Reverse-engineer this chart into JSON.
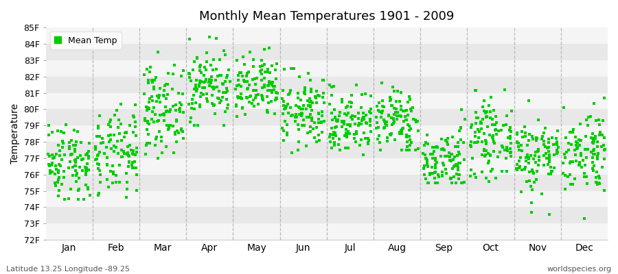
{
  "title": "Monthly Mean Temperatures 1901 - 2009",
  "ylabel": "Temperature",
  "footer_left": "Latitude 13.25 Longitude -89.25",
  "footer_right": "worldspecies.org",
  "legend_label": "Mean Temp",
  "bg_color": "#ffffff",
  "plot_bg": "#ffffff",
  "marker_color": "#00cc00",
  "marker_size": 3,
  "ylim": [
    72,
    85
  ],
  "yticks": [
    72,
    73,
    74,
    75,
    76,
    77,
    78,
    79,
    80,
    81,
    82,
    83,
    84,
    85
  ],
  "ytick_labels": [
    "72F",
    "73F",
    "74F",
    "75F",
    "76F",
    "77F",
    "78F",
    "79F",
    "80F",
    "81F",
    "82F",
    "83F",
    "84F",
    "85F"
  ],
  "months": [
    "Jan",
    "Feb",
    "Mar",
    "Apr",
    "May",
    "Jun",
    "Jul",
    "Aug",
    "Sep",
    "Oct",
    "Nov",
    "Dec"
  ],
  "month_means": [
    76.8,
    77.2,
    80.0,
    81.5,
    81.2,
    79.8,
    79.2,
    79.3,
    76.8,
    78.2,
    77.2,
    77.5
  ],
  "month_stds": [
    1.2,
    1.3,
    1.3,
    1.1,
    1.0,
    1.1,
    1.0,
    1.0,
    1.0,
    1.1,
    1.2,
    1.3
  ],
  "month_mins": [
    74.5,
    73.8,
    77.0,
    79.0,
    78.5,
    76.5,
    77.0,
    77.5,
    75.5,
    75.5,
    73.0,
    73.3
  ],
  "month_maxs": [
    79.8,
    80.5,
    83.5,
    84.5,
    85.2,
    82.5,
    81.5,
    82.5,
    81.5,
    82.0,
    81.0,
    80.7
  ],
  "n_years": 109,
  "seed": 42,
  "dashed_color": "#aaaaaa",
  "stripe_colors": [
    "#f5f5f5",
    "#e8e8e8"
  ],
  "figsize": [
    9.0,
    4.0
  ],
  "dpi": 100
}
